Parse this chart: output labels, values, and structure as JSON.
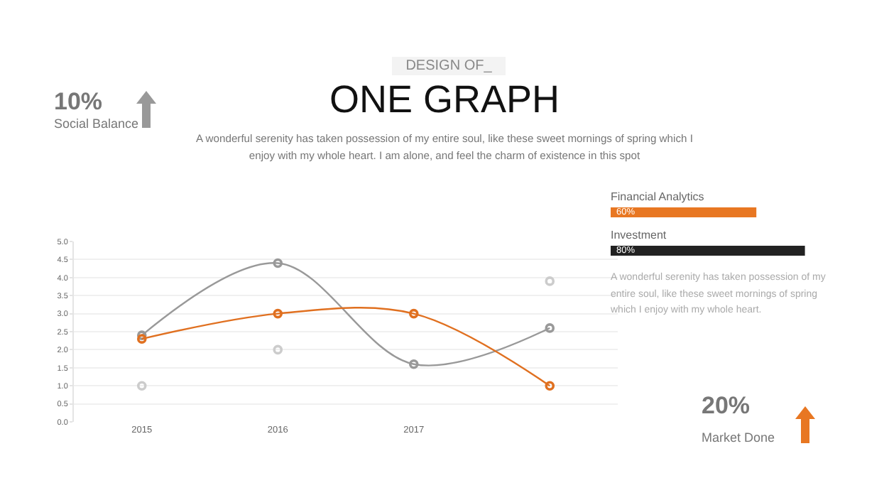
{
  "chart_data": [
    {
      "type": "line",
      "title": "ONE GRAPH",
      "subtitle": "A wonderful serenity has taken possession of my entire soul, like these sweet mornings of spring which I enjoy with my whole heart. I am alone, and feel the charm of existence in this spot",
      "annotations": [
        "DESIGN OF_"
      ],
      "categories": [
        "2015",
        "2016",
        "2017",
        null
      ],
      "series": [
        {
          "color": "#999999",
          "values": [
            2.4,
            4.4,
            1.6,
            2.6
          ]
        },
        {
          "color": "#e07020",
          "values": [
            2.3,
            3.0,
            3.0,
            1.0
          ]
        },
        {
          "type": "scatter",
          "color": "#cccccc",
          "values": [
            1.0,
            2.0,
            null,
            3.9
          ]
        }
      ],
      "ylim": [
        0,
        5
      ],
      "yticks": [
        {
          "value": 0,
          "label": "0.0"
        },
        {
          "value": 0.5,
          "label": "0.5"
        },
        {
          "value": 1,
          "label": "1.0"
        },
        {
          "value": 1.5,
          "label": "1.5"
        },
        {
          "value": 2,
          "label": "2.0"
        },
        {
          "value": 2.5,
          "label": "2.5"
        },
        {
          "value": 3,
          "label": "3.0"
        },
        {
          "value": 3.5,
          "label": "3.5"
        },
        {
          "value": 4,
          "label": "4.0"
        },
        {
          "value": 4.5,
          "label": "4.5"
        },
        {
          "value": 5,
          "label": "5.0"
        }
      ],
      "grid": "y",
      "marker": "circle",
      "line_style": "solid"
    },
    {
      "type": "bar",
      "orientation": "horizontal",
      "categories": [
        "Financial Analytics",
        "Investment"
      ],
      "values": [
        60,
        80
      ],
      "colors": [
        "#e87722",
        "#222222"
      ],
      "value_labels": [
        "60%",
        "80%"
      ],
      "tick_labels": false,
      "annotations": [
        "A wonderful serenity has taken possession of my entire soul, like these sweet mornings of spring which I enjoy with my whole heart."
      ]
    },
    {
      "type": "other",
      "annotations": [
        "10%",
        "Social Balance",
        "20%",
        "Market Done"
      ]
    }
  ]
}
